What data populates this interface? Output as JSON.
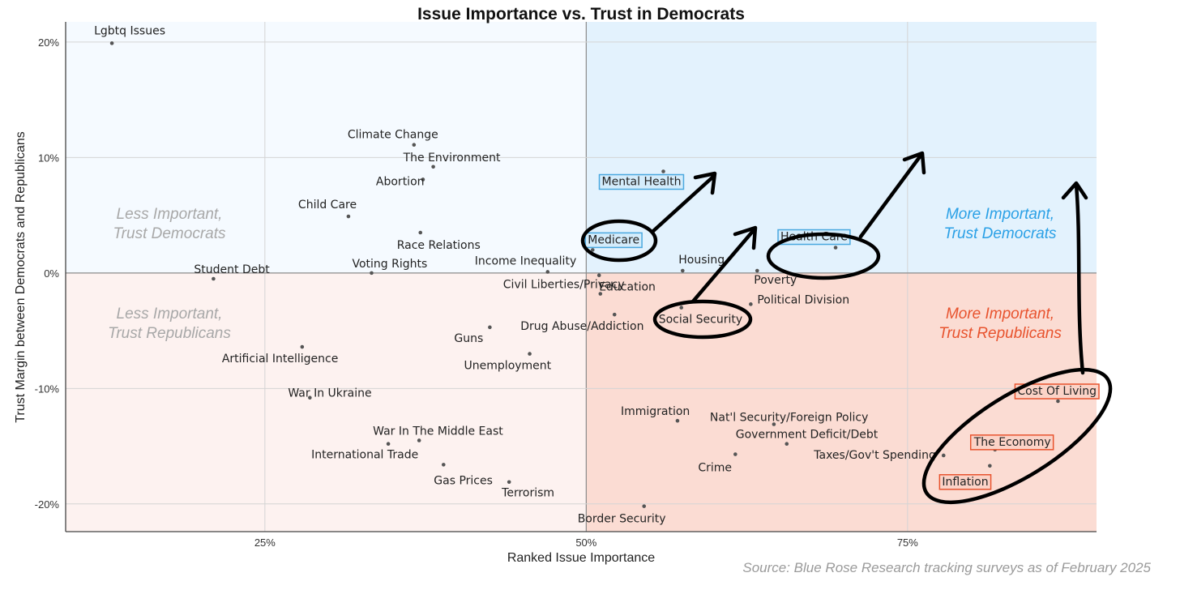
{
  "chart_data": {
    "type": "scatter",
    "title": "Issue Importance vs. Trust in Democrats",
    "xlabel": "Ranked Issue Importance",
    "ylabel": "Trust Margin between Democrats and Republicans",
    "xlim": [
      0.095,
      0.897
    ],
    "ylim": [
      -0.224,
      0.2175
    ],
    "x_ticks": [
      0.25,
      0.5,
      0.75
    ],
    "x_tick_labels": [
      "25%",
      "50%",
      "75%"
    ],
    "y_ticks": [
      -0.2,
      -0.1,
      0.0,
      0.1,
      0.2
    ],
    "y_tick_labels": [
      "-20%",
      "-10%",
      "0%",
      "10%",
      "20%"
    ],
    "grid": true,
    "quadrant_labels": {
      "top_left": [
        "Less Important,",
        "Trust Democrats"
      ],
      "top_right": [
        "More Important,",
        "Trust Democrats"
      ],
      "bottom_left": [
        "Less Important,",
        "Trust Republicans"
      ],
      "bottom_right": [
        "More Important,",
        "Trust Republicans"
      ]
    },
    "points": [
      {
        "label": "Lgbtq Issues",
        "x": 0.131,
        "y": 0.199
      },
      {
        "label": "Climate Change",
        "x": 0.366,
        "y": 0.111
      },
      {
        "label": "The Environment",
        "x": 0.381,
        "y": 0.092
      },
      {
        "label": "Abortion",
        "x": 0.373,
        "y": 0.081
      },
      {
        "label": "Child Care",
        "x": 0.315,
        "y": 0.049
      },
      {
        "label": "Race Relations",
        "x": 0.371,
        "y": 0.035
      },
      {
        "label": "Voting Rights",
        "x": 0.333,
        "y": 0.0
      },
      {
        "label": "Student Debt",
        "x": 0.21,
        "y": -0.005
      },
      {
        "label": "Income Inequality",
        "x": 0.47,
        "y": 0.001
      },
      {
        "label": "Mental Health",
        "x": 0.56,
        "y": 0.088,
        "highlight": "blue"
      },
      {
        "label": "Medicare",
        "x": 0.505,
        "y": 0.02,
        "highlight": "blue"
      },
      {
        "label": "Housing",
        "x": 0.575,
        "y": 0.002
      },
      {
        "label": "Health Care",
        "x": 0.694,
        "y": 0.022,
        "highlight": "blue"
      },
      {
        "label": "Poverty",
        "x": 0.633,
        "y": 0.002
      },
      {
        "label": "Education",
        "x": 0.51,
        "y": -0.002
      },
      {
        "label": "Political Division",
        "x": 0.628,
        "y": -0.027
      },
      {
        "label": "Social Security",
        "x": 0.574,
        "y": -0.03
      },
      {
        "label": "Civil Liberties/Privacy",
        "x": 0.511,
        "y": -0.018
      },
      {
        "label": "Drug Abuse/Addiction",
        "x": 0.522,
        "y": -0.036
      },
      {
        "label": "Guns",
        "x": 0.425,
        "y": -0.047
      },
      {
        "label": "Unemployment",
        "x": 0.456,
        "y": -0.07
      },
      {
        "label": "Artificial Intelligence",
        "x": 0.279,
        "y": -0.064
      },
      {
        "label": "War In Ukraine",
        "x": 0.285,
        "y": -0.108
      },
      {
        "label": "War In The Middle East",
        "x": 0.37,
        "y": -0.145
      },
      {
        "label": "International Trade",
        "x": 0.346,
        "y": -0.148
      },
      {
        "label": "Gas Prices",
        "x": 0.389,
        "y": -0.166
      },
      {
        "label": "Terrorism",
        "x": 0.44,
        "y": -0.181
      },
      {
        "label": "Border Security",
        "x": 0.545,
        "y": -0.202
      },
      {
        "label": "Immigration",
        "x": 0.571,
        "y": -0.128
      },
      {
        "label": "Nat'l Security/Foreign Policy",
        "x": 0.646,
        "y": -0.131
      },
      {
        "label": "Government Deficit/Debt",
        "x": 0.656,
        "y": -0.148
      },
      {
        "label": "Crime",
        "x": 0.616,
        "y": -0.157
      },
      {
        "label": "Taxes/Gov't Spending",
        "x": 0.778,
        "y": -0.158
      },
      {
        "label": "Cost Of Living",
        "x": 0.867,
        "y": -0.111,
        "highlight": "red"
      },
      {
        "label": "The Economy",
        "x": 0.818,
        "y": -0.153,
        "highlight": "red"
      },
      {
        "label": "Inflation",
        "x": 0.814,
        "y": -0.167,
        "highlight": "red"
      }
    ],
    "source": "Source: Blue Rose Research tracking surveys as of February 2025"
  },
  "colors": {
    "top_left_bg": "#f5faff",
    "top_right_bg": "#e3f2fd",
    "bottom_left_bg": "#fdf2f0",
    "bottom_right_bg": "#fbdcd3",
    "dem_label": "#2aa0e6",
    "rep_label": "#e8532e",
    "less_label": "#a8a8a8",
    "highlight_blue_fill": "#d4ecfb",
    "highlight_blue_stroke": "#4aa8df",
    "highlight_red_fill": "#fbd3c7",
    "highlight_red_stroke": "#e8532e",
    "point": "#555555"
  }
}
